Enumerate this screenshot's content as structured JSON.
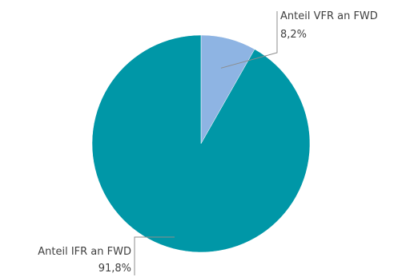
{
  "chart_data": {
    "type": "pie",
    "title": "",
    "slices": [
      {
        "label": "Anteil VFR an FWD",
        "value": 8.2,
        "value_label": "8,2%",
        "color": "#8eb4e3"
      },
      {
        "label": "Anteil IFR an FWD",
        "value": 91.8,
        "value_label": "91,8%",
        "color": "#0097a7"
      }
    ],
    "start_angle_deg": 0,
    "direction": "clockwise",
    "legend": "none"
  }
}
